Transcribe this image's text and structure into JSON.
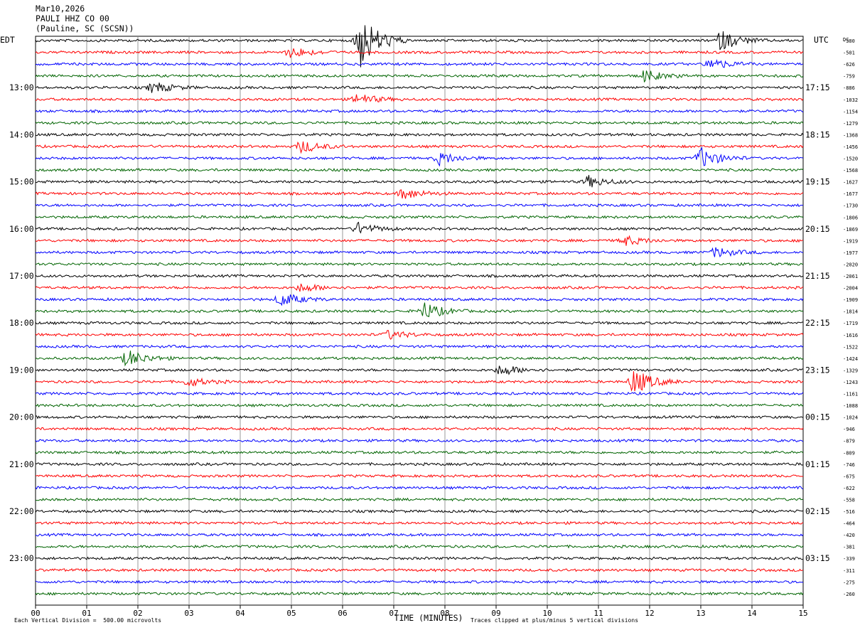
{
  "header": {
    "date": "Mar10,2026",
    "station": "PAULI HHZ CO 00",
    "location": "(Pauline, SC (SCSN))"
  },
  "colors": {
    "trace_cycle": [
      "#000000",
      "#ff0000",
      "#0000ff",
      "#006400"
    ],
    "grid": "#808080"
  },
  "chart_data": {
    "type": "line",
    "subtype": "helicorder",
    "left_axis_label": "EDT",
    "right_axis_label": "UTC",
    "dc_label": "DC",
    "left_hour_labels": [
      "13:00",
      "14:00",
      "15:00",
      "16:00",
      "17:00",
      "18:00",
      "19:00",
      "20:00",
      "21:00",
      "22:00",
      "23:00"
    ],
    "right_hour_labels": [
      "17:15",
      "18:15",
      "19:15",
      "20:15",
      "21:15",
      "22:15",
      "23:15",
      "00:15",
      "01:15",
      "02:15",
      "03:15"
    ],
    "dc_offsets": [
      -380,
      -501,
      -626,
      -759,
      -886,
      -1032,
      -1154,
      -1279,
      -1368,
      -1456,
      -1520,
      -1568,
      -1627,
      -1677,
      -1730,
      -1806,
      -1869,
      -1919,
      -1977,
      -2020,
      -2061,
      -2004,
      -1909,
      -1814,
      -1719,
      -1616,
      -1522,
      -1424,
      -1329,
      -1243,
      -1161,
      -1088,
      -1024,
      -946,
      -879,
      -809,
      -746,
      -675,
      -622,
      -558,
      -516,
      -464,
      -420,
      -381,
      -339,
      -311,
      -275,
      -260
    ],
    "x_ticks": [
      "00",
      "01",
      "02",
      "03",
      "04",
      "05",
      "06",
      "07",
      "08",
      "09",
      "10",
      "11",
      "12",
      "13",
      "14",
      "15"
    ],
    "xlabel": "TIME (MINUTES)",
    "xlim": [
      0,
      15
    ],
    "rows_per_hour": 4,
    "minutes_per_row": 15,
    "grid": true,
    "events": [
      {
        "row": 0,
        "minute": 6.35,
        "strength": 1.0
      },
      {
        "row": 0,
        "minute": 13.4,
        "strength": 0.35
      },
      {
        "row": 1,
        "minute": 5.0,
        "strength": 0.2
      },
      {
        "row": 2,
        "minute": 13.2,
        "strength": 0.2
      },
      {
        "row": 3,
        "minute": 11.9,
        "strength": 0.2
      },
      {
        "row": 4,
        "minute": 2.3,
        "strength": 0.2
      },
      {
        "row": 5,
        "minute": 6.3,
        "strength": 0.2
      },
      {
        "row": 9,
        "minute": 5.2,
        "strength": 0.22
      },
      {
        "row": 10,
        "minute": 7.9,
        "strength": 0.22
      },
      {
        "row": 10,
        "minute": 13.0,
        "strength": 0.35
      },
      {
        "row": 12,
        "minute": 10.8,
        "strength": 0.2
      },
      {
        "row": 13,
        "minute": 7.2,
        "strength": 0.2
      },
      {
        "row": 16,
        "minute": 6.3,
        "strength": 0.2
      },
      {
        "row": 17,
        "minute": 11.5,
        "strength": 0.18
      },
      {
        "row": 18,
        "minute": 13.3,
        "strength": 0.18
      },
      {
        "row": 21,
        "minute": 5.2,
        "strength": 0.15
      },
      {
        "row": 22,
        "minute": 4.8,
        "strength": 0.25
      },
      {
        "row": 23,
        "minute": 7.6,
        "strength": 0.3
      },
      {
        "row": 25,
        "minute": 6.9,
        "strength": 0.15
      },
      {
        "row": 27,
        "minute": 1.8,
        "strength": 0.3
      },
      {
        "row": 28,
        "minute": 9.1,
        "strength": 0.2
      },
      {
        "row": 29,
        "minute": 11.7,
        "strength": 0.45
      },
      {
        "row": 29,
        "minute": 3.0,
        "strength": 0.15
      }
    ],
    "footer_left": "Each Vertical Division =  500.00 microvolts",
    "footer_right": "Traces clipped at plus/minus 5 vertical divisions"
  }
}
